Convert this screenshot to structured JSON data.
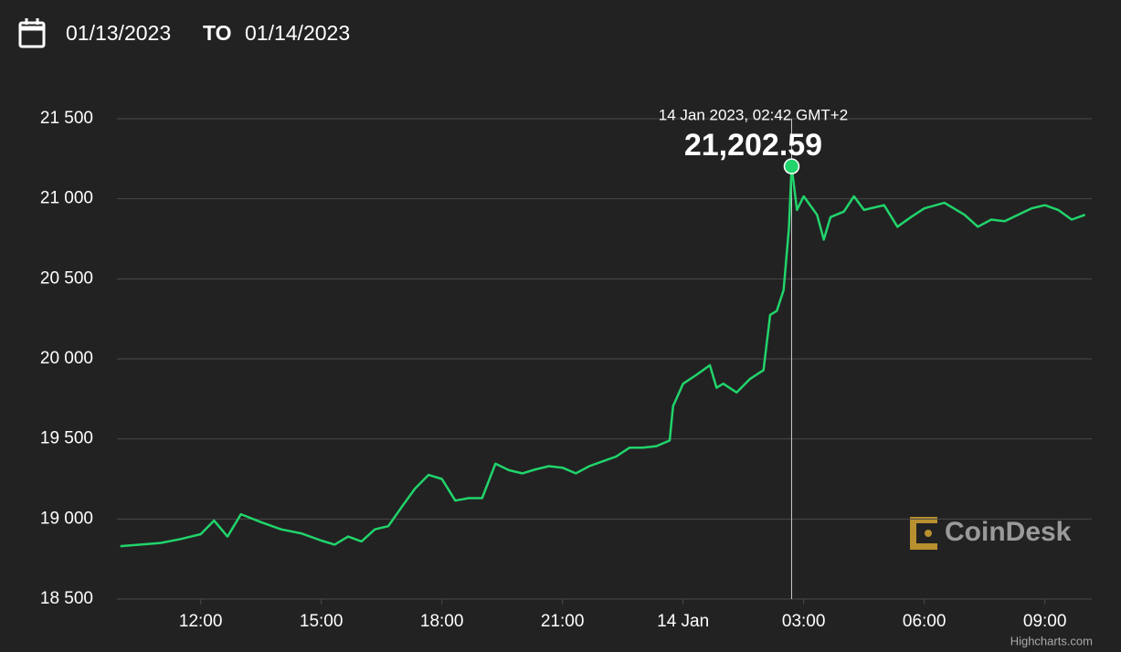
{
  "header": {
    "from": "01/13/2023",
    "separator": "TO",
    "to": "01/14/2023"
  },
  "chart_data": {
    "type": "line",
    "x": [
      "2023-01-13T10:00",
      "2023-01-13T10:30",
      "2023-01-13T11:00",
      "2023-01-13T11:30",
      "2023-01-13T12:00",
      "2023-01-13T12:20",
      "2023-01-13T12:40",
      "2023-01-13T13:00",
      "2023-01-13T13:30",
      "2023-01-13T14:00",
      "2023-01-13T14:30",
      "2023-01-13T15:00",
      "2023-01-13T15:20",
      "2023-01-13T15:40",
      "2023-01-13T16:00",
      "2023-01-13T16:20",
      "2023-01-13T16:40",
      "2023-01-13T17:00",
      "2023-01-13T17:20",
      "2023-01-13T17:40",
      "2023-01-13T18:00",
      "2023-01-13T18:20",
      "2023-01-13T18:40",
      "2023-01-13T19:00",
      "2023-01-13T19:20",
      "2023-01-13T19:40",
      "2023-01-13T20:00",
      "2023-01-13T20:20",
      "2023-01-13T20:40",
      "2023-01-13T21:00",
      "2023-01-13T21:20",
      "2023-01-13T21:40",
      "2023-01-13T22:00",
      "2023-01-13T22:20",
      "2023-01-13T22:40",
      "2023-01-13T23:00",
      "2023-01-13T23:20",
      "2023-01-13T23:40",
      "2023-01-13T23:45",
      "2023-01-14T00:00",
      "2023-01-14T00:20",
      "2023-01-14T00:40",
      "2023-01-14T00:50",
      "2023-01-14T01:00",
      "2023-01-14T01:20",
      "2023-01-14T01:40",
      "2023-01-14T02:00",
      "2023-01-14T02:10",
      "2023-01-14T02:20",
      "2023-01-14T02:30",
      "2023-01-14T02:38",
      "2023-01-14T02:42",
      "2023-01-14T02:50",
      "2023-01-14T03:00",
      "2023-01-14T03:20",
      "2023-01-14T03:30",
      "2023-01-14T03:40",
      "2023-01-14T04:00",
      "2023-01-14T04:15",
      "2023-01-14T04:30",
      "2023-01-14T05:00",
      "2023-01-14T05:20",
      "2023-01-14T05:40",
      "2023-01-14T06:00",
      "2023-01-14T06:30",
      "2023-01-14T07:00",
      "2023-01-14T07:20",
      "2023-01-14T07:40",
      "2023-01-14T08:00",
      "2023-01-14T08:20",
      "2023-01-14T08:40",
      "2023-01-14T09:00",
      "2023-01-14T09:20",
      "2023-01-14T09:40",
      "2023-01-14T10:00"
    ],
    "series": [
      {
        "color": "#21d46b",
        "values": [
          18830,
          18840,
          18850,
          18875,
          18905,
          18990,
          18890,
          19030,
          18980,
          18935,
          18910,
          18865,
          18840,
          18890,
          18860,
          18935,
          18955,
          19075,
          19190,
          19275,
          19250,
          19115,
          19130,
          19130,
          19345,
          19305,
          19285,
          19310,
          19330,
          19320,
          19285,
          19330,
          19360,
          19390,
          19445,
          19445,
          19455,
          19490,
          19705,
          19845,
          19900,
          19960,
          19820,
          19845,
          19790,
          19875,
          19930,
          20275,
          20300,
          20430,
          20815,
          21202.59,
          20930,
          21015,
          20900,
          20745,
          20885,
          20920,
          21015,
          20930,
          20960,
          20825,
          20885,
          20940,
          20975,
          20900,
          20825,
          20870,
          20860,
          20900,
          20940,
          20960,
          20930,
          20870,
          20900
        ]
      }
    ],
    "xlim": [
      "2023-01-13T09:55",
      "2023-01-14T10:10"
    ],
    "xticks": [
      {
        "value": "2023-01-13T12:00",
        "label": "12:00"
      },
      {
        "value": "2023-01-13T15:00",
        "label": "15:00"
      },
      {
        "value": "2023-01-13T18:00",
        "label": "18:00"
      },
      {
        "value": "2023-01-13T21:00",
        "label": "21:00"
      },
      {
        "value": "2023-01-14T00:00",
        "label": "14 Jan"
      },
      {
        "value": "2023-01-14T03:00",
        "label": "03:00"
      },
      {
        "value": "2023-01-14T06:00",
        "label": "06:00"
      },
      {
        "value": "2023-01-14T09:00",
        "label": "09:00"
      }
    ],
    "ylim": [
      18500,
      21500
    ],
    "yticks": [
      {
        "value": 18500,
        "label": "18 500"
      },
      {
        "value": 19000,
        "label": "19 000"
      },
      {
        "value": 19500,
        "label": "19 500"
      },
      {
        "value": 20000,
        "label": "20 000"
      },
      {
        "value": 20500,
        "label": "20 500"
      },
      {
        "value": 21000,
        "label": "21 000"
      },
      {
        "value": 21500,
        "label": "21 500"
      }
    ],
    "grid": true,
    "tooltip": {
      "x": "2023-01-14T02:42",
      "label": "14 Jan 2023, 02:42 GMT+2",
      "value": 21202.59,
      "value_label": "21,202.59"
    },
    "watermark": "CoinDesk",
    "credits": "Highcharts.com"
  }
}
